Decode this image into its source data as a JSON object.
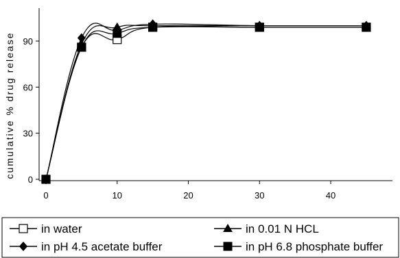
{
  "chart_data": {
    "type": "line",
    "title": "",
    "xlabel": "",
    "ylabel": "cumulative % drug release",
    "x": [
      0,
      5,
      10,
      15,
      30,
      45
    ],
    "xlim": [
      -2,
      46
    ],
    "ylim": [
      0,
      110
    ],
    "xticks": [
      "0",
      "10",
      "20",
      "30",
      "40"
    ],
    "xtick_values": [
      0,
      10,
      20,
      30,
      40
    ],
    "yticks": [
      "0",
      "30",
      "60",
      "90"
    ],
    "ytick_values": [
      0,
      30,
      60,
      90
    ],
    "grid": false,
    "legend_position": "bottom",
    "series": [
      {
        "name": "in water",
        "marker": "open-square",
        "values": [
          0,
          86,
          91,
          99,
          99,
          99
        ]
      },
      {
        "name": "in 0.01 N HCL",
        "marker": "filled-triangle",
        "values": [
          0,
          88,
          99,
          100,
          100,
          100
        ]
      },
      {
        "name": "in pH 4.5 acetate buffer",
        "marker": "filled-diamond",
        "values": [
          0,
          92,
          97,
          101,
          100,
          100
        ]
      },
      {
        "name": "in pH 6.8 phosphate buffer",
        "marker": "filled-square",
        "values": [
          0,
          86,
          95,
          99,
          99,
          99
        ]
      }
    ],
    "colors": {
      "line": "#000000",
      "background": "#ffffff"
    }
  }
}
